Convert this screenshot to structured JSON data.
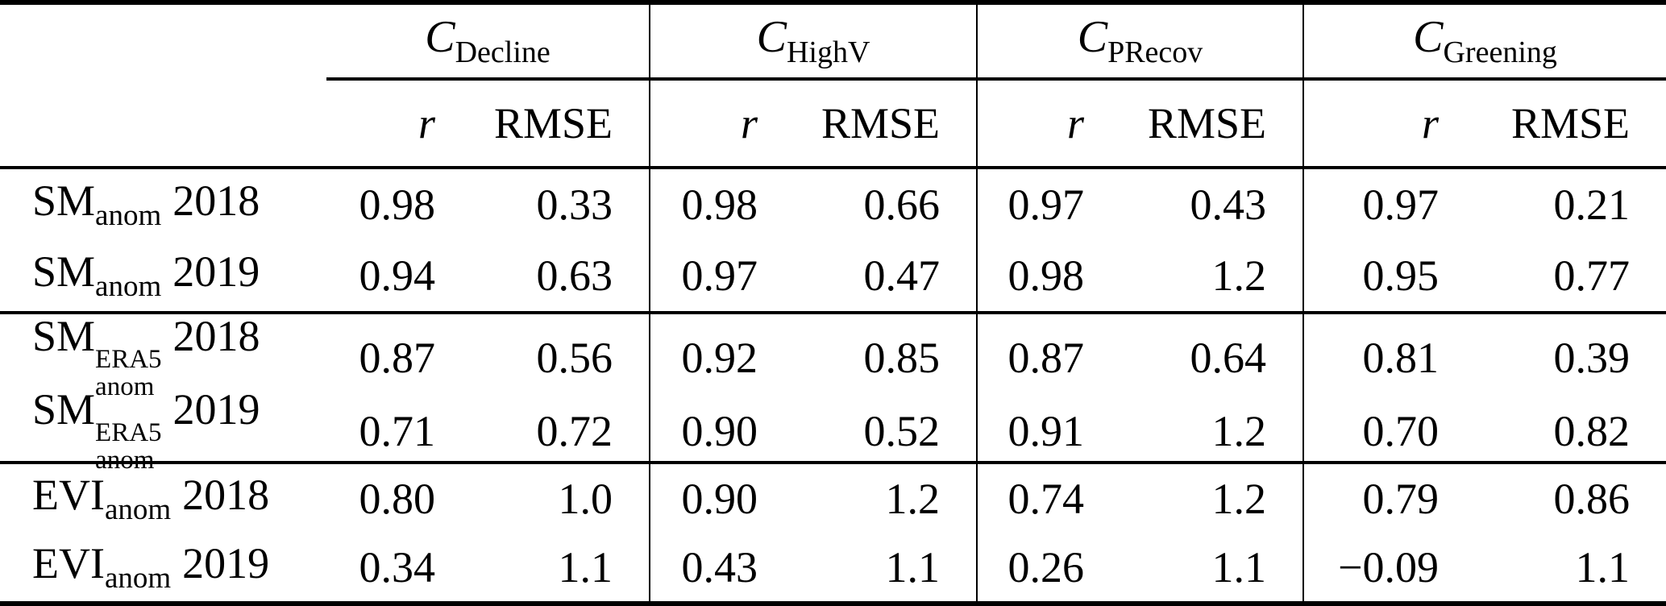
{
  "table": {
    "column_groups": [
      {
        "symbol": "C",
        "subscript": "Decline"
      },
      {
        "symbol": "C",
        "subscript": "HighV"
      },
      {
        "symbol": "C",
        "subscript": "PRecov"
      },
      {
        "symbol": "C",
        "subscript": "Greening"
      }
    ],
    "metric_headers": {
      "r": "r",
      "rmse": "RMSE"
    },
    "rows": [
      {
        "base": "SM",
        "sup": "",
        "sub": "anom",
        "year": "2018",
        "values": [
          "0.98",
          "0.33",
          "0.98",
          "0.66",
          "0.97",
          "0.43",
          "0.97",
          "0.21"
        ]
      },
      {
        "base": "SM",
        "sup": "",
        "sub": "anom",
        "year": "2019",
        "values": [
          "0.94",
          "0.63",
          "0.97",
          "0.47",
          "0.98",
          "1.2",
          "0.95",
          "0.77"
        ]
      },
      {
        "base": "SM",
        "sup": "ERA5",
        "sub": "anom",
        "year": "2018",
        "values": [
          "0.87",
          "0.56",
          "0.92",
          "0.85",
          "0.87",
          "0.64",
          "0.81",
          "0.39"
        ]
      },
      {
        "base": "SM",
        "sup": "ERA5",
        "sub": "anom",
        "year": "2019",
        "values": [
          "0.71",
          "0.72",
          "0.90",
          "0.52",
          "0.91",
          "1.2",
          "0.70",
          "0.82"
        ]
      },
      {
        "base": "EVI",
        "sup": "",
        "sub": "anom",
        "year": "2018",
        "values": [
          "0.80",
          "1.0",
          "0.90",
          "1.2",
          "0.74",
          "1.2",
          "0.79",
          "0.86"
        ]
      },
      {
        "base": "EVI",
        "sup": "",
        "sub": "anom",
        "year": "2019",
        "values": [
          "0.34",
          "1.1",
          "0.43",
          "1.1",
          "0.26",
          "1.1",
          "−0.09",
          "1.1"
        ]
      }
    ],
    "colors": {
      "text": "#000000",
      "rule": "#000000",
      "background": "#ffffff"
    }
  }
}
